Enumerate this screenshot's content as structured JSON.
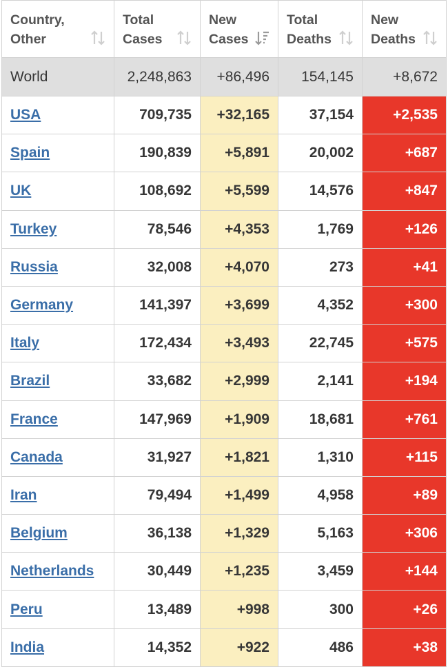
{
  "headers": [
    {
      "line1": "Country,",
      "line2": "Other"
    },
    {
      "line1": "Total",
      "line2": "Cases"
    },
    {
      "line1": "New",
      "line2": "Cases"
    },
    {
      "line1": "Total",
      "line2": "Deaths"
    },
    {
      "line1": "New",
      "line2": "Deaths"
    }
  ],
  "world": {
    "country": "World",
    "total_cases": "2,248,863",
    "new_cases": "+86,496",
    "total_deaths": "154,145",
    "new_deaths": "+8,672"
  },
  "rows": [
    {
      "country": "USA",
      "total_cases": "709,735",
      "new_cases": "+32,165",
      "total_deaths": "37,154",
      "new_deaths": "+2,535"
    },
    {
      "country": "Spain",
      "total_cases": "190,839",
      "new_cases": "+5,891",
      "total_deaths": "20,002",
      "new_deaths": "+687"
    },
    {
      "country": "UK",
      "total_cases": "108,692",
      "new_cases": "+5,599",
      "total_deaths": "14,576",
      "new_deaths": "+847"
    },
    {
      "country": "Turkey",
      "total_cases": "78,546",
      "new_cases": "+4,353",
      "total_deaths": "1,769",
      "new_deaths": "+126"
    },
    {
      "country": "Russia",
      "total_cases": "32,008",
      "new_cases": "+4,070",
      "total_deaths": "273",
      "new_deaths": "+41"
    },
    {
      "country": "Germany",
      "total_cases": "141,397",
      "new_cases": "+3,699",
      "total_deaths": "4,352",
      "new_deaths": "+300"
    },
    {
      "country": "Italy",
      "total_cases": "172,434",
      "new_cases": "+3,493",
      "total_deaths": "22,745",
      "new_deaths": "+575"
    },
    {
      "country": "Brazil",
      "total_cases": "33,682",
      "new_cases": "+2,999",
      "total_deaths": "2,141",
      "new_deaths": "+194"
    },
    {
      "country": "France",
      "total_cases": "147,969",
      "new_cases": "+1,909",
      "total_deaths": "18,681",
      "new_deaths": "+761"
    },
    {
      "country": "Canada",
      "total_cases": "31,927",
      "new_cases": "+1,821",
      "total_deaths": "1,310",
      "new_deaths": "+115"
    },
    {
      "country": "Iran",
      "total_cases": "79,494",
      "new_cases": "+1,499",
      "total_deaths": "4,958",
      "new_deaths": "+89"
    },
    {
      "country": "Belgium",
      "total_cases": "36,138",
      "new_cases": "+1,329",
      "total_deaths": "5,163",
      "new_deaths": "+306"
    },
    {
      "country": "Netherlands",
      "total_cases": "30,449",
      "new_cases": "+1,235",
      "total_deaths": "3,459",
      "new_deaths": "+144"
    },
    {
      "country": "Peru",
      "total_cases": "13,489",
      "new_cases": "+998",
      "total_deaths": "300",
      "new_deaths": "+26"
    },
    {
      "country": "India",
      "total_cases": "14,352",
      "new_cases": "+922",
      "total_deaths": "486",
      "new_deaths": "+38"
    }
  ],
  "icons": {
    "unsorted": "sort-unsorted-icon",
    "sorted_desc": "sort-descending-icon"
  },
  "colors": {
    "new_cases_bg": "#fbefc0",
    "new_deaths_bg": "#e8372a",
    "world_bg": "#dfdfdf",
    "link": "#3a6ea8"
  }
}
